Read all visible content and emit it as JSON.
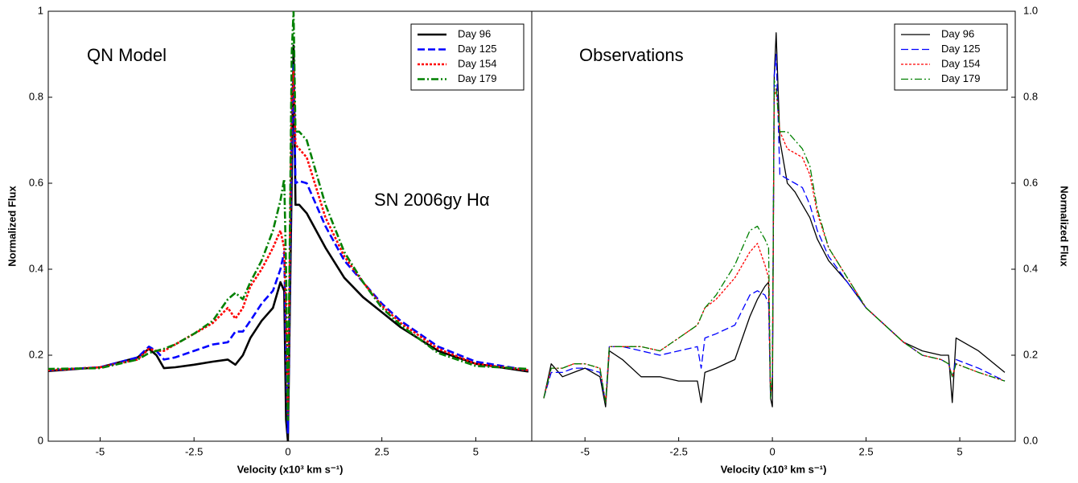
{
  "chart_data": [
    {
      "type": "line",
      "xlabel": "Velocity (x10³ km s⁻¹)",
      "ylabel": "Normalized Flux",
      "xlim": [
        -6.38,
        6.49
      ],
      "xticks": [
        -5,
        -2.5,
        0,
        2.5,
        5
      ],
      "ylim": [
        0,
        1
      ],
      "yticks": [
        0,
        0.2,
        0.4,
        0.6,
        0.8,
        1
      ],
      "y_axis_side": "left",
      "legend": "upper right",
      "annotations": [
        "QN Model",
        "SN 2006gy Hα"
      ],
      "x": [
        -6.4,
        -5,
        -4,
        -3.7,
        -3.5,
        -3.3,
        -3,
        -2.5,
        -2,
        -1.6,
        -1.4,
        -1.2,
        -1,
        -0.7,
        -0.4,
        -0.2,
        -0.1,
        -0.05,
        0,
        0.1,
        0.15,
        0.2,
        0.3,
        0.5,
        1,
        1.5,
        2,
        2.5,
        3,
        4,
        5,
        6.4
      ],
      "series": [
        {
          "name": "Day 96",
          "color": "#000000",
          "linestyle": "solid",
          "values": [
            0.163,
            0.172,
            0.195,
            0.215,
            0.2,
            0.17,
            0.172,
            0.178,
            0.185,
            0.19,
            0.178,
            0.2,
            0.24,
            0.28,
            0.31,
            0.37,
            0.35,
            0.05,
            0.0,
            0.6,
            0.92,
            0.55,
            0.55,
            0.53,
            0.45,
            0.38,
            0.335,
            0.3,
            0.265,
            0.21,
            0.18,
            0.162
          ]
        },
        {
          "name": "Day 125",
          "color": "#0000ff",
          "linestyle": "dashed",
          "values": [
            0.165,
            0.172,
            0.195,
            0.22,
            0.21,
            0.19,
            0.195,
            0.21,
            0.225,
            0.23,
            0.255,
            0.255,
            0.28,
            0.32,
            0.35,
            0.4,
            0.44,
            0.2,
            0.02,
            0.7,
            0.88,
            0.6,
            0.605,
            0.6,
            0.5,
            0.42,
            0.37,
            0.32,
            0.28,
            0.22,
            0.185,
            0.165
          ]
        },
        {
          "name": "Day 154",
          "color": "#ff0000",
          "linestyle": "dotted",
          "values": [
            0.165,
            0.172,
            0.19,
            0.215,
            0.21,
            0.21,
            0.225,
            0.25,
            0.275,
            0.31,
            0.285,
            0.31,
            0.36,
            0.4,
            0.45,
            0.49,
            0.45,
            0.3,
            0.05,
            0.8,
            0.86,
            0.69,
            0.68,
            0.66,
            0.52,
            0.43,
            0.37,
            0.315,
            0.275,
            0.215,
            0.18,
            0.165
          ]
        },
        {
          "name": "Day 179",
          "color": "#008000",
          "linestyle": "dashdot",
          "values": [
            0.168,
            0.17,
            0.19,
            0.205,
            0.21,
            0.215,
            0.225,
            0.25,
            0.28,
            0.33,
            0.345,
            0.33,
            0.37,
            0.42,
            0.49,
            0.56,
            0.61,
            0.4,
            0.05,
            0.9,
            1.0,
            0.72,
            0.72,
            0.7,
            0.55,
            0.44,
            0.37,
            0.31,
            0.27,
            0.205,
            0.175,
            0.168
          ]
        }
      ]
    },
    {
      "type": "line",
      "xlabel": "Velocity (x10³ km s⁻¹)",
      "ylabel": "Normalized Flux",
      "xlim": [
        -6.42,
        6.48
      ],
      "xticks": [
        -5,
        -2.5,
        0,
        2.5,
        5
      ],
      "ylim": [
        0,
        1
      ],
      "yticks": [
        {
          "value": 0,
          "label": "0.0"
        },
        0.2,
        0.4,
        0.6,
        0.8,
        {
          "value": 1,
          "label": "1.0"
        }
      ],
      "y_axis_side": "right",
      "legend": "upper right",
      "annotations": [
        "Observations"
      ],
      "x": [
        -6.1,
        -5.9,
        -5.6,
        -5.3,
        -5.0,
        -4.6,
        -4.45,
        -4.35,
        -4.0,
        -3.5,
        -3.0,
        -2.5,
        -2.0,
        -1.9,
        -1.8,
        -1.5,
        -1.0,
        -0.6,
        -0.4,
        -0.2,
        -0.1,
        -0.05,
        0,
        0.05,
        0.1,
        0.2,
        0.4,
        0.6,
        0.8,
        1.0,
        1.2,
        1.5,
        2,
        2.5,
        3,
        3.5,
        4,
        4.5,
        4.7,
        4.8,
        4.9,
        5.5,
        6.2
      ],
      "series": [
        {
          "name": "Day 96",
          "color": "#000000",
          "linestyle": "solid",
          "values": [
            0.1,
            0.18,
            0.15,
            0.16,
            0.17,
            0.15,
            0.08,
            0.21,
            0.19,
            0.15,
            0.15,
            0.14,
            0.14,
            0.09,
            0.16,
            0.17,
            0.19,
            0.29,
            0.33,
            0.36,
            0.37,
            0.1,
            0.08,
            0.85,
            0.95,
            0.7,
            0.6,
            0.58,
            0.55,
            0.52,
            0.47,
            0.42,
            0.37,
            0.31,
            0.27,
            0.23,
            0.21,
            0.2,
            0.2,
            0.09,
            0.24,
            0.21,
            0.16
          ]
        },
        {
          "name": "Day 125",
          "color": "#0000ff",
          "linestyle": "dashed",
          "values": [
            0.1,
            0.16,
            0.16,
            0.17,
            0.17,
            0.16,
            0.09,
            0.22,
            0.22,
            0.21,
            0.2,
            0.21,
            0.22,
            0.17,
            0.24,
            0.25,
            0.27,
            0.34,
            0.35,
            0.34,
            0.32,
            0.1,
            0.15,
            0.85,
            0.9,
            0.62,
            0.61,
            0.6,
            0.59,
            0.55,
            0.49,
            0.43,
            0.37,
            0.31,
            0.27,
            0.23,
            0.2,
            0.19,
            0.18,
            0.15,
            0.19,
            0.17,
            0.14
          ]
        },
        {
          "name": "Day 154",
          "color": "#ff0000",
          "linestyle": "dotted",
          "values": [
            0.1,
            0.17,
            0.17,
            0.18,
            0.18,
            0.17,
            0.09,
            0.22,
            0.22,
            0.22,
            0.21,
            0.24,
            0.27,
            0.29,
            0.31,
            0.33,
            0.38,
            0.44,
            0.46,
            0.41,
            0.38,
            0.1,
            0.15,
            0.8,
            0.82,
            0.72,
            0.68,
            0.67,
            0.66,
            0.62,
            0.53,
            0.45,
            0.38,
            0.31,
            0.27,
            0.23,
            0.2,
            0.19,
            0.18,
            0.15,
            0.18,
            0.16,
            0.14
          ]
        },
        {
          "name": "Day 179",
          "color": "#008000",
          "linestyle": "dashdot",
          "values": [
            0.1,
            0.17,
            0.17,
            0.18,
            0.18,
            0.17,
            0.09,
            0.22,
            0.22,
            0.22,
            0.21,
            0.24,
            0.27,
            0.29,
            0.31,
            0.34,
            0.41,
            0.49,
            0.5,
            0.47,
            0.45,
            0.1,
            0.15,
            0.84,
            0.82,
            0.72,
            0.72,
            0.7,
            0.68,
            0.64,
            0.54,
            0.45,
            0.38,
            0.31,
            0.27,
            0.23,
            0.2,
            0.19,
            0.18,
            0.15,
            0.18,
            0.16,
            0.14
          ]
        }
      ]
    }
  ]
}
